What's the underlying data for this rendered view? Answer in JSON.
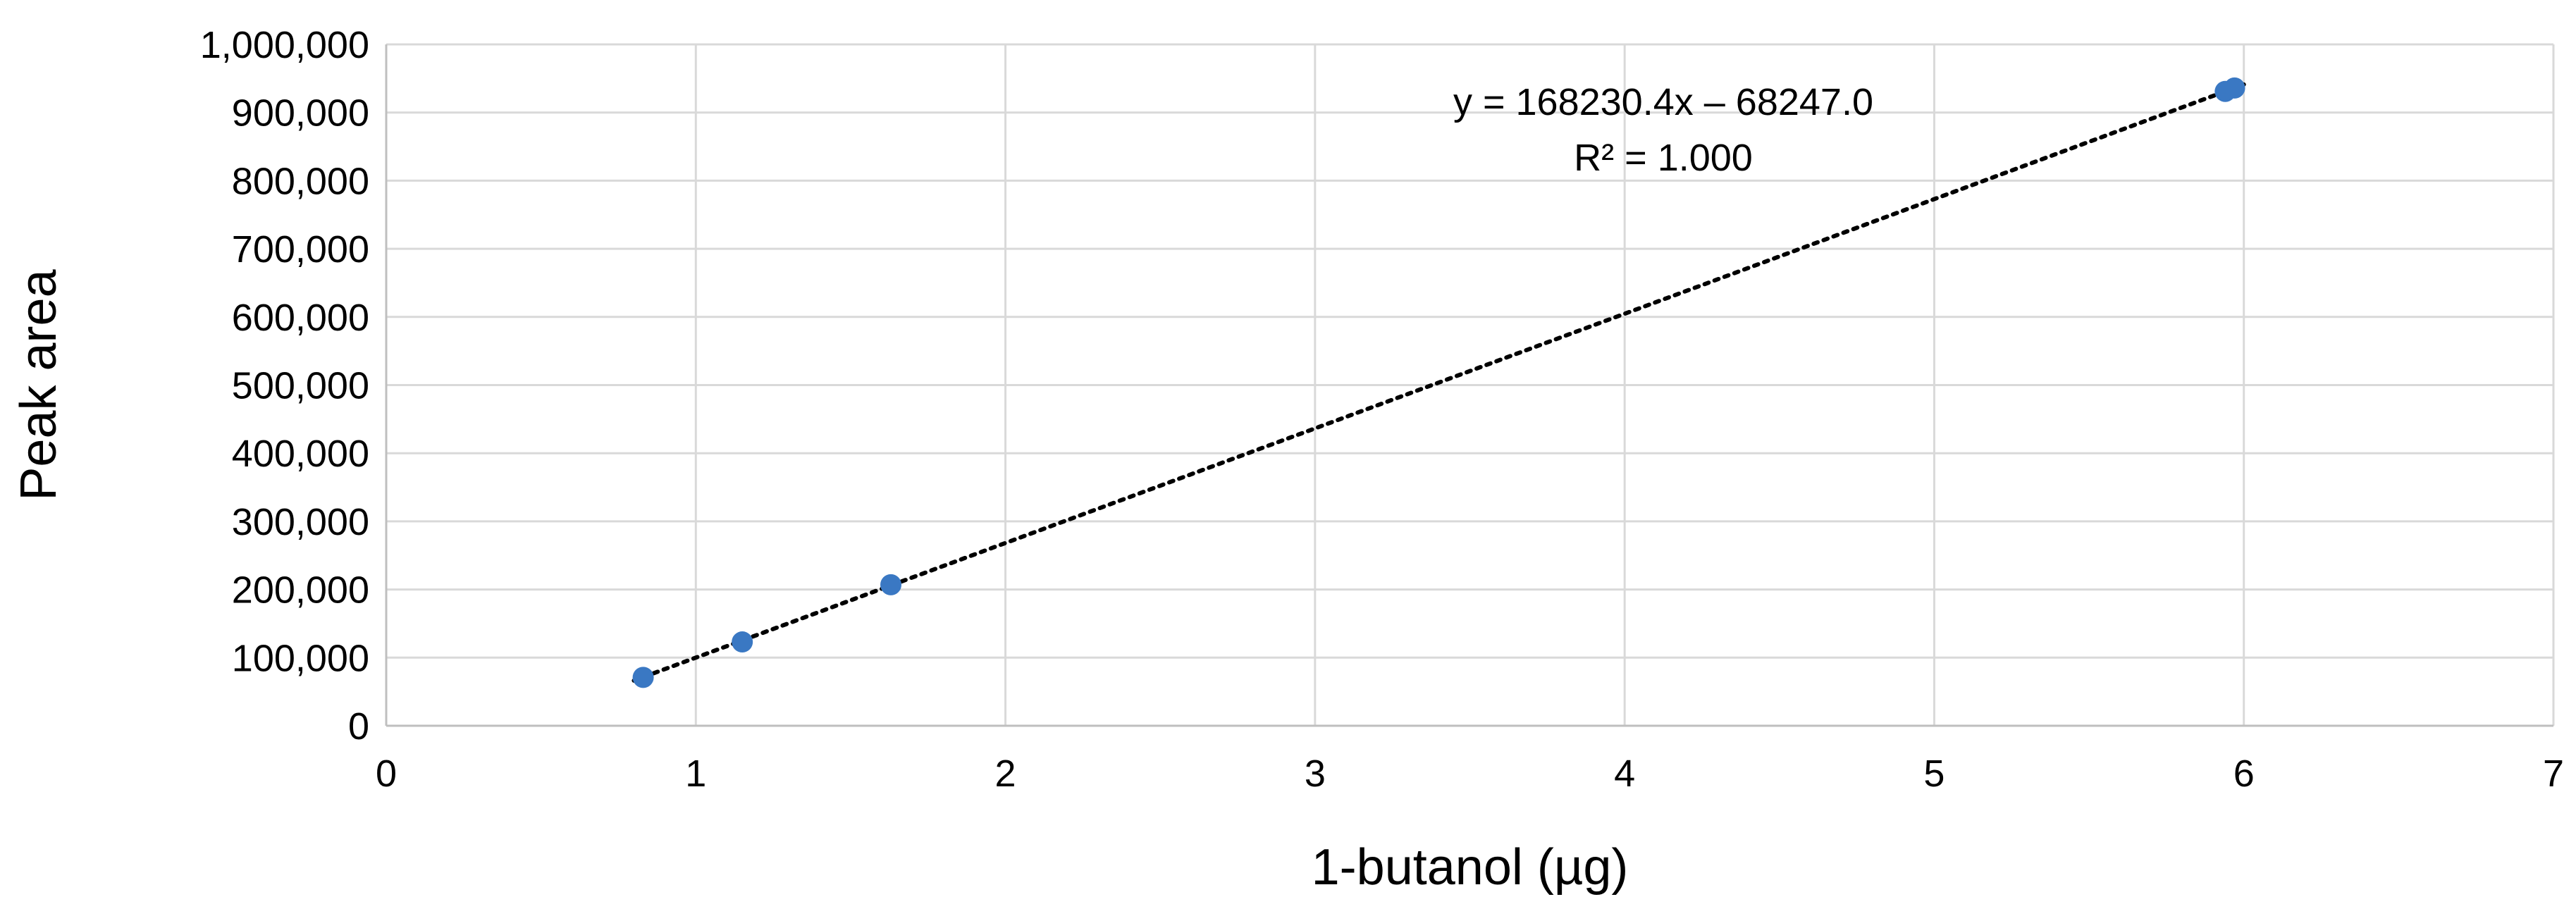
{
  "chart_data": {
    "type": "scatter",
    "title": "",
    "xlabel": "1-butanol (µg)",
    "ylabel": "Peak area",
    "xlim": [
      0,
      7
    ],
    "ylim": [
      0,
      1000000
    ],
    "x_ticks": [
      "0",
      "1",
      "2",
      "3",
      "4",
      "5",
      "6",
      "7"
    ],
    "y_ticks": [
      "0",
      "100,000",
      "200,000",
      "300,000",
      "400,000",
      "500,000",
      "600,000",
      "700,000",
      "800,000",
      "900,000",
      "1,000,000"
    ],
    "grid": true,
    "series": [
      {
        "color": "#3a78c3",
        "points": [
          {
            "x": 0.83,
            "y": 71000
          },
          {
            "x": 1.15,
            "y": 123000
          },
          {
            "x": 1.63,
            "y": 207000
          },
          {
            "x": 5.94,
            "y": 931000
          },
          {
            "x": 5.97,
            "y": 936000
          }
        ]
      }
    ],
    "trendline": {
      "type": "linear",
      "style": "dotted",
      "color": "#000000",
      "slope": 168230.4,
      "intercept": -68247.0,
      "x_range": [
        0.83,
        5.97
      ],
      "equation": "y = 168230.4x – 68247.0",
      "r_squared": "R² = 1.000"
    }
  }
}
